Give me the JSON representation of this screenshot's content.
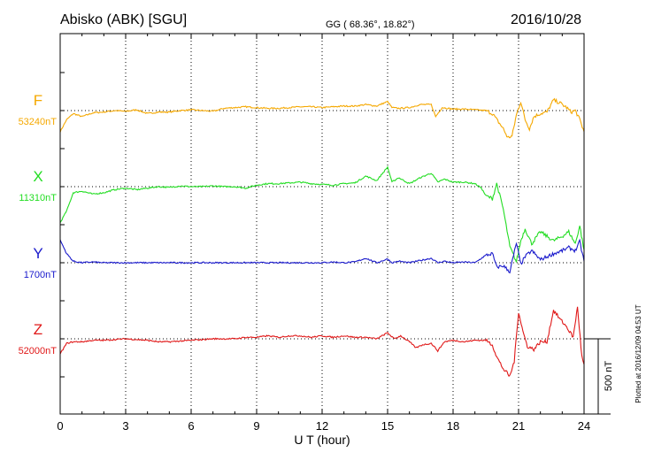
{
  "header": {
    "station": "Abisko (ABK)  [SGU]",
    "coords": "GG ( 68.36°,  18.82°)",
    "date": "2016/10/28"
  },
  "footer": {
    "plotted": "Plotted at 2016/12/09 04:53 UT",
    "scale_label": "500 nT"
  },
  "colors": {
    "F": "#f5a800",
    "X": "#22dd22",
    "Y": "#1a1acc",
    "Z": "#e01818"
  },
  "chart_data": {
    "type": "line",
    "xlabel": "U T (hour)",
    "xlim": [
      0,
      24
    ],
    "x_ticks": [
      "0",
      "3",
      "6",
      "9",
      "12",
      "15",
      "18",
      "21",
      "24"
    ],
    "grid": "vertical dotted every 3 h; dotted baseline per component",
    "scale_bar_nT": 500,
    "series": [
      {
        "name": "F",
        "baseline_label": "53240nT",
        "baseline_nT": 53240,
        "values_offset_nT": [
          [
            0,
            -140
          ],
          [
            0.3,
            -60
          ],
          [
            0.6,
            -20
          ],
          [
            1,
            -40
          ],
          [
            1.5,
            -15
          ],
          [
            2,
            -10
          ],
          [
            2.5,
            0
          ],
          [
            3,
            -5
          ],
          [
            3.5,
            5
          ],
          [
            4,
            -20
          ],
          [
            4.5,
            -10
          ],
          [
            5,
            -10
          ],
          [
            5.5,
            0
          ],
          [
            6,
            5
          ],
          [
            6.5,
            0
          ],
          [
            7,
            -5
          ],
          [
            7.5,
            15
          ],
          [
            8,
            20
          ],
          [
            8.5,
            25
          ],
          [
            9,
            20
          ],
          [
            9.5,
            15
          ],
          [
            10,
            15
          ],
          [
            10.5,
            20
          ],
          [
            11,
            25
          ],
          [
            11.5,
            25
          ],
          [
            12,
            20
          ],
          [
            12.5,
            25
          ],
          [
            13,
            30
          ],
          [
            13.5,
            30
          ],
          [
            14,
            40
          ],
          [
            14.5,
            30
          ],
          [
            15,
            60
          ],
          [
            15.2,
            20
          ],
          [
            15.5,
            15
          ],
          [
            16,
            20
          ],
          [
            16.5,
            40
          ],
          [
            17,
            40
          ],
          [
            17.2,
            -40
          ],
          [
            17.5,
            20
          ],
          [
            18,
            10
          ],
          [
            18.5,
            10
          ],
          [
            19,
            5
          ],
          [
            19.5,
            0
          ],
          [
            19.8,
            -20
          ],
          [
            20,
            -60
          ],
          [
            20.3,
            -120
          ],
          [
            20.5,
            -180
          ],
          [
            20.7,
            -170
          ],
          [
            20.9,
            -30
          ],
          [
            21.1,
            60
          ],
          [
            21.3,
            -60
          ],
          [
            21.5,
            -120
          ],
          [
            21.7,
            -40
          ],
          [
            22,
            -20
          ],
          [
            22.3,
            -10
          ],
          [
            22.6,
            70
          ],
          [
            22.9,
            50
          ],
          [
            23.2,
            20
          ],
          [
            23.4,
            -10
          ],
          [
            23.6,
            0
          ],
          [
            23.8,
            -60
          ],
          [
            24,
            -140
          ]
        ]
      },
      {
        "name": "X",
        "baseline_label": "11310nT",
        "baseline_nT": 11310,
        "values_offset_nT": [
          [
            0,
            -240
          ],
          [
            0.3,
            -160
          ],
          [
            0.6,
            -40
          ],
          [
            1,
            -30
          ],
          [
            1.5,
            -50
          ],
          [
            2,
            -40
          ],
          [
            2.5,
            -20
          ],
          [
            3,
            -10
          ],
          [
            3.5,
            -20
          ],
          [
            4,
            -10
          ],
          [
            4.5,
            0
          ],
          [
            5,
            -5
          ],
          [
            5.5,
            5
          ],
          [
            6,
            0
          ],
          [
            6.5,
            0
          ],
          [
            7,
            5
          ],
          [
            7.5,
            0
          ],
          [
            8,
            0
          ],
          [
            8.5,
            -10
          ],
          [
            9,
            10
          ],
          [
            9.5,
            20
          ],
          [
            10,
            20
          ],
          [
            10.5,
            25
          ],
          [
            11,
            30
          ],
          [
            11.5,
            20
          ],
          [
            12,
            15
          ],
          [
            12.5,
            10
          ],
          [
            13,
            20
          ],
          [
            13.5,
            25
          ],
          [
            14,
            70
          ],
          [
            14.5,
            40
          ],
          [
            15,
            130
          ],
          [
            15.2,
            30
          ],
          [
            15.5,
            60
          ],
          [
            16,
            20
          ],
          [
            16.5,
            60
          ],
          [
            17,
            90
          ],
          [
            17.3,
            30
          ],
          [
            17.6,
            50
          ],
          [
            18,
            30
          ],
          [
            18.5,
            30
          ],
          [
            19,
            20
          ],
          [
            19.3,
            -10
          ],
          [
            19.5,
            -60
          ],
          [
            19.8,
            -80
          ],
          [
            20,
            20
          ],
          [
            20.3,
            -150
          ],
          [
            20.6,
            -400
          ],
          [
            20.9,
            -500
          ],
          [
            21.1,
            -360
          ],
          [
            21.3,
            -280
          ],
          [
            21.6,
            -380
          ],
          [
            22,
            -300
          ],
          [
            22.3,
            -330
          ],
          [
            22.6,
            -360
          ],
          [
            23,
            -330
          ],
          [
            23.3,
            -300
          ],
          [
            23.6,
            -380
          ],
          [
            23.8,
            -260
          ],
          [
            24,
            -420
          ]
        ]
      },
      {
        "name": "Y",
        "baseline_label": "1700nT",
        "baseline_nT": 1700,
        "values_offset_nT": [
          [
            0,
            150
          ],
          [
            0.3,
            60
          ],
          [
            0.6,
            10
          ],
          [
            1,
            0
          ],
          [
            1.5,
            5
          ],
          [
            2,
            0
          ],
          [
            3,
            0
          ],
          [
            4,
            0
          ],
          [
            5,
            0
          ],
          [
            6,
            0
          ],
          [
            7,
            0
          ],
          [
            8,
            0
          ],
          [
            9,
            0
          ],
          [
            10,
            0
          ],
          [
            11,
            0
          ],
          [
            12,
            0
          ],
          [
            12.5,
            5
          ],
          [
            13,
            0
          ],
          [
            13.5,
            5
          ],
          [
            14,
            30
          ],
          [
            14.5,
            0
          ],
          [
            15,
            25
          ],
          [
            15.2,
            0
          ],
          [
            15.5,
            10
          ],
          [
            16,
            0
          ],
          [
            16.5,
            15
          ],
          [
            17,
            30
          ],
          [
            17.3,
            0
          ],
          [
            17.6,
            10
          ],
          [
            18,
            0
          ],
          [
            18.5,
            5
          ],
          [
            19,
            0
          ],
          [
            19.5,
            50
          ],
          [
            19.8,
            60
          ],
          [
            20,
            -30
          ],
          [
            20.3,
            -20
          ],
          [
            20.6,
            -60
          ],
          [
            20.9,
            130
          ],
          [
            21.1,
            -10
          ],
          [
            21.3,
            40
          ],
          [
            21.6,
            80
          ],
          [
            22,
            20
          ],
          [
            22.3,
            40
          ],
          [
            22.6,
            60
          ],
          [
            23,
            80
          ],
          [
            23.3,
            100
          ],
          [
            23.6,
            80
          ],
          [
            23.8,
            140
          ],
          [
            24,
            10
          ]
        ]
      },
      {
        "name": "Z",
        "baseline_label": "52000nT",
        "baseline_nT": 52000,
        "values_offset_nT": [
          [
            0,
            -100
          ],
          [
            0.3,
            -30
          ],
          [
            0.6,
            -20
          ],
          [
            1,
            -20
          ],
          [
            1.5,
            -10
          ],
          [
            2,
            -10
          ],
          [
            3,
            0
          ],
          [
            4,
            -10
          ],
          [
            4.5,
            -20
          ],
          [
            5,
            -20
          ],
          [
            6,
            -10
          ],
          [
            7,
            0
          ],
          [
            8,
            0
          ],
          [
            8.5,
            10
          ],
          [
            9,
            10
          ],
          [
            9.5,
            20
          ],
          [
            10,
            10
          ],
          [
            10.5,
            20
          ],
          [
            11,
            20
          ],
          [
            11.5,
            10
          ],
          [
            12,
            20
          ],
          [
            12.5,
            10
          ],
          [
            13,
            20
          ],
          [
            13.5,
            10
          ],
          [
            14,
            10
          ],
          [
            14.5,
            0
          ],
          [
            15,
            40
          ],
          [
            15.3,
            0
          ],
          [
            15.6,
            20
          ],
          [
            16,
            -20
          ],
          [
            16.3,
            -60
          ],
          [
            16.6,
            -40
          ],
          [
            17,
            -30
          ],
          [
            17.3,
            -80
          ],
          [
            17.6,
            -20
          ],
          [
            18,
            -10
          ],
          [
            18.5,
            -20
          ],
          [
            19,
            -10
          ],
          [
            19.5,
            -10
          ],
          [
            19.8,
            -40
          ],
          [
            20,
            -120
          ],
          [
            20.3,
            -200
          ],
          [
            20.6,
            -250
          ],
          [
            20.8,
            -150
          ],
          [
            21,
            180
          ],
          [
            21.2,
            50
          ],
          [
            21.4,
            -50
          ],
          [
            21.7,
            -70
          ],
          [
            22,
            -20
          ],
          [
            22.3,
            -20
          ],
          [
            22.6,
            190
          ],
          [
            22.9,
            130
          ],
          [
            23.2,
            80
          ],
          [
            23.5,
            10
          ],
          [
            23.7,
            210
          ],
          [
            23.9,
            -120
          ],
          [
            24,
            -170
          ]
        ]
      }
    ]
  }
}
